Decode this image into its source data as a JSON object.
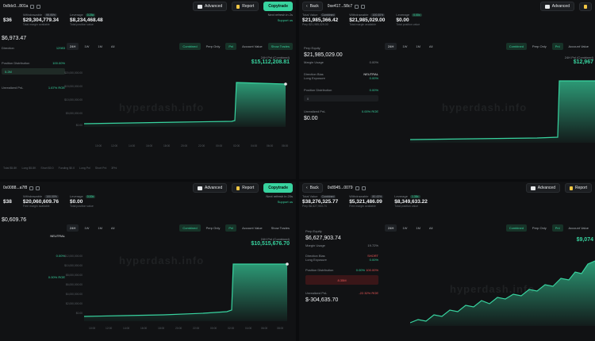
{
  "panes": [
    {
      "address": "0x8dc0...801a",
      "buttons": {
        "advanced": "Advanced",
        "report": "Report",
        "copytrade": "Copytrade"
      },
      "stats": [
        {
          "label": "",
          "value": "$36",
          "sub": ""
        },
        {
          "label": "Withdrawable",
          "pill": "99.95%",
          "value": "$29,304,779.34",
          "sub": "Total margin available"
        },
        {
          "label": "Leverage",
          "pill": "0.25x",
          "value": "$8,234,468.48",
          "sub": "Total position value"
        }
      ],
      "refresh": "Next refresh in 2s",
      "support": "Support us",
      "left": {
        "equity": "$6,973.47",
        "pnl_pct": "12983",
        "direction": "Direction",
        "dist_label": "Position Distribution",
        "dist_pct": "100.00%",
        "bar_label": "5.2M",
        "upnl_label": "Unrealized PnL",
        "upnl_pct": "1.67% ROE"
      },
      "tabs": [
        "24H",
        "1W",
        "1M",
        "All"
      ],
      "rtabs": [
        "Combined",
        "Perp Only",
        "Pnl",
        "Account Value",
        "Show Trades"
      ],
      "pnl_label": "24H Pnl (Combined)",
      "pnl_value": "$15,112,208.81",
      "yticks": [
        "$20,000,000.00",
        "$15,000,000.00",
        "$10,000,000.00",
        "$5,000,000.00",
        "$0.00"
      ],
      "xticks": [
        "10:00",
        "12:00",
        "14:00",
        "16:00",
        "18:00",
        "20:00",
        "22:00",
        "00:00",
        "02:00",
        "04:00",
        "06:00",
        "08:00"
      ],
      "watermark": "hyperdash.info",
      "bottom": [
        "Total $5.8K",
        "Long $5.8K",
        "Short $0.0",
        "Funding $0.0",
        "Long Pnl",
        "Short Pnl",
        "3Pnl"
      ]
    },
    {
      "address": "0xe417...58c7",
      "buttons": {
        "back": "Back",
        "advanced": "Advanced"
      },
      "stats": [
        {
          "label": "Total Value",
          "pill": "Combined",
          "value": "$21,985,366.42",
          "sub": "Perp $21,985,029.00"
        },
        {
          "label": "Withdrawable",
          "pill": "100.00%",
          "value": "$21,985,029.00",
          "sub": "Total margin available"
        },
        {
          "label": "Leverage",
          "pill": "0.00x",
          "value": "$0.00",
          "sub": "Total position value"
        }
      ],
      "left": {
        "equity_label": "Perp Equity",
        "equity": "$21,985,029.00",
        "margin_label": "Margin Usage",
        "margin_pct": "0.00%",
        "direction": "Direction Bias",
        "bias": "NEUTRAL",
        "exposure": "Long Exposure",
        "exp_pct": "0.00%",
        "dist_label": "Position Distribution",
        "dist_pct": "0.00%",
        "upnl_label": "Unrealized PnL",
        "upnl": "$0.00",
        "upnl_pct": "0.00% ROE"
      },
      "tabs": [
        "24H",
        "1W",
        "1M",
        "All"
      ],
      "rtabs": [
        "Combined",
        "Perp Only",
        "Pnl",
        "Account Value"
      ],
      "pnl_label": "24H Pnl (Combined)",
      "pnl_value": "$12,967",
      "watermark": "hyperdash.info"
    },
    {
      "address": "0x0088...a7f8",
      "buttons": {
        "advanced": "Advanced",
        "report": "Report",
        "copytrade": "Copytrade"
      },
      "stats": [
        {
          "label": "",
          "value": "$38",
          "sub": ""
        },
        {
          "label": "Withdrawable",
          "pill": "100.00%",
          "value": "$20,060,609.76",
          "sub": "Free margin available"
        },
        {
          "label": "Leverage",
          "pill": "0.00x",
          "value": "$0.00",
          "sub": "Total position value"
        }
      ],
      "refresh": "Next refresh in 20s",
      "support": "Support us",
      "left": {
        "equity": "$0,609.76",
        "bias": "NEUTRAL",
        "dist_pct": "0.00%",
        "upnl_pct": "0.00% ROE"
      },
      "tabs": [
        "24H",
        "1W",
        "1M",
        "All"
      ],
      "rtabs": [
        "Combined",
        "Perp Only",
        "Pnl",
        "Account Value",
        "Show Trades"
      ],
      "pnl_label": "24H Pnl (Combined)",
      "pnl_value": "$10,515,676.70",
      "yticks": [
        "$12,000,000.00",
        "$10,000,000.00",
        "$8,000,000.00",
        "$6,000,000.00",
        "$4,000,000.00",
        "$2,000,000.00",
        "$0.00"
      ],
      "xticks": [
        "10:00",
        "12:00",
        "14:00",
        "16:00",
        "18:00",
        "20:00",
        "22:00",
        "00:00",
        "02:00",
        "04:00",
        "06:00",
        "08:00"
      ],
      "watermark": "hyperdash.info"
    },
    {
      "address": "0x8945...0079",
      "buttons": {
        "back": "Back",
        "advanced": "Advanced",
        "report": "Report"
      },
      "stats": [
        {
          "label": "Total Value",
          "pill": "Combined",
          "value": "$38,276,325.77",
          "sub": "Perp $6,627,903.74"
        },
        {
          "label": "Withdrawable",
          "pill": "80.43%",
          "value": "$5,321,486.09",
          "sub": "Free margin available"
        },
        {
          "label": "Leverage",
          "pill": "1.38x",
          "value": "$8,349,633.22",
          "sub": "Total position value"
        }
      ],
      "left": {
        "equity_label": "Perp Equity",
        "equity": "$6,627,903.74",
        "margin_label": "Margin Usage",
        "margin_pct": "19.72%",
        "direction": "Direction Bias",
        "bias": "SHORT",
        "exposure": "Long Exposure",
        "exp_pct": "0.00%",
        "dist_label": "Position Distribution",
        "dist_long": "0.00%",
        "dist_short": "100.00%",
        "bar_label": "8.35M",
        "upnl_label": "Unrealized PnL",
        "upnl": "$-304,635.70",
        "upnl_pct": "-22.32% ROE"
      },
      "tabs": [
        "24H",
        "1W",
        "1M",
        "All"
      ],
      "rtabs": [
        "Combined",
        "Perp Only",
        "Pnl",
        "Account Value"
      ],
      "pnl_value": "$9,074",
      "watermark": "hyperdash.info"
    }
  ]
}
